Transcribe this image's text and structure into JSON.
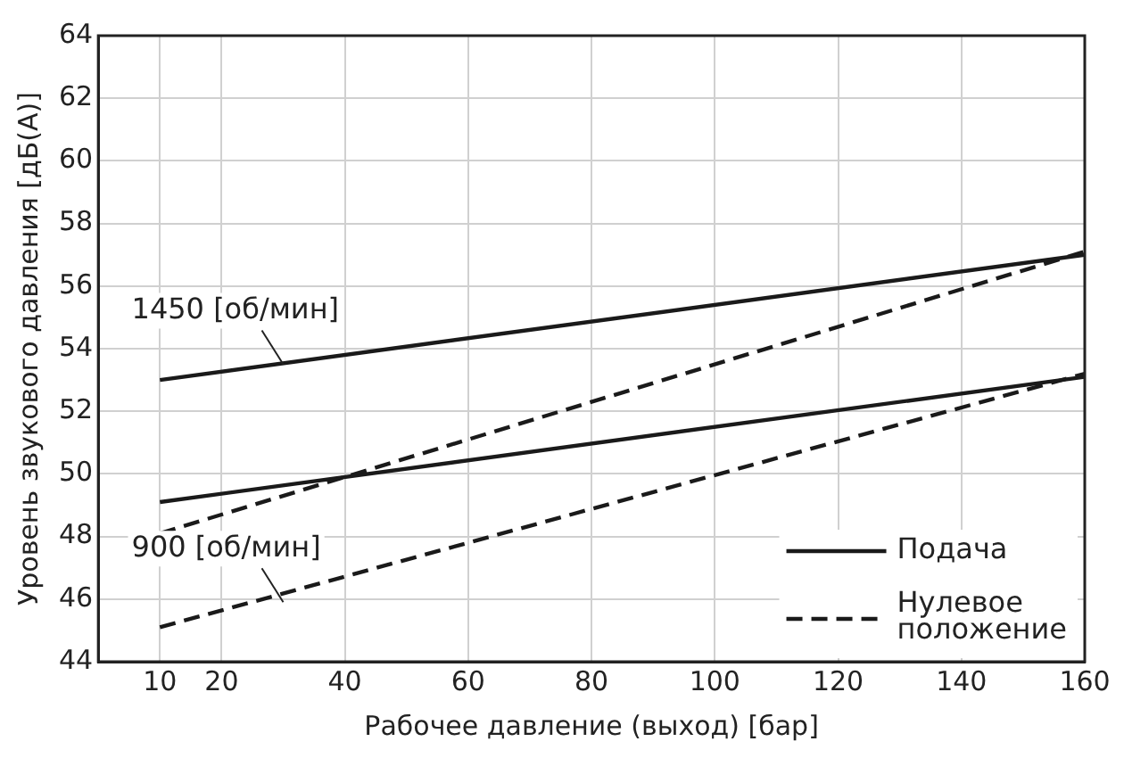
{
  "chart_data": {
    "type": "line",
    "xlabel": "Рабочее давление (выход) [бар]",
    "ylabel": "Уровень звукового давления [дБ(А)]",
    "xlim": [
      0,
      160
    ],
    "xticks": [
      10,
      20,
      40,
      60,
      80,
      100,
      120,
      140,
      160
    ],
    "ylim": [
      44,
      64
    ],
    "yticks": [
      44,
      46,
      48,
      50,
      52,
      54,
      56,
      58,
      60,
      62,
      64
    ],
    "x": [
      10,
      160
    ],
    "grid": true,
    "legend": "bottom right",
    "marker": "none",
    "series": [
      {
        "name": "Подача",
        "color": "#1a1a1a",
        "line_style": "solid",
        "values": [
          53,
          57
        ]
      },
      {
        "name": "Нулевое положение",
        "color": "#1a1a1a",
        "line_style": "dashed",
        "values": [
          48.1,
          57.1
        ]
      },
      {
        "color": "#1a1a1a",
        "line_style": "solid",
        "values": [
          49.1,
          53.1
        ]
      },
      {
        "color": "#1a1a1a",
        "line_style": "dashed",
        "values": [
          45.1,
          53.2
        ]
      }
    ],
    "annotations": [
      {
        "text": "1450 [об/мин]",
        "x": 30,
        "y": 53.5
      },
      {
        "text": "900 [об/мин]",
        "x": 30,
        "y": 45.9
      }
    ]
  }
}
